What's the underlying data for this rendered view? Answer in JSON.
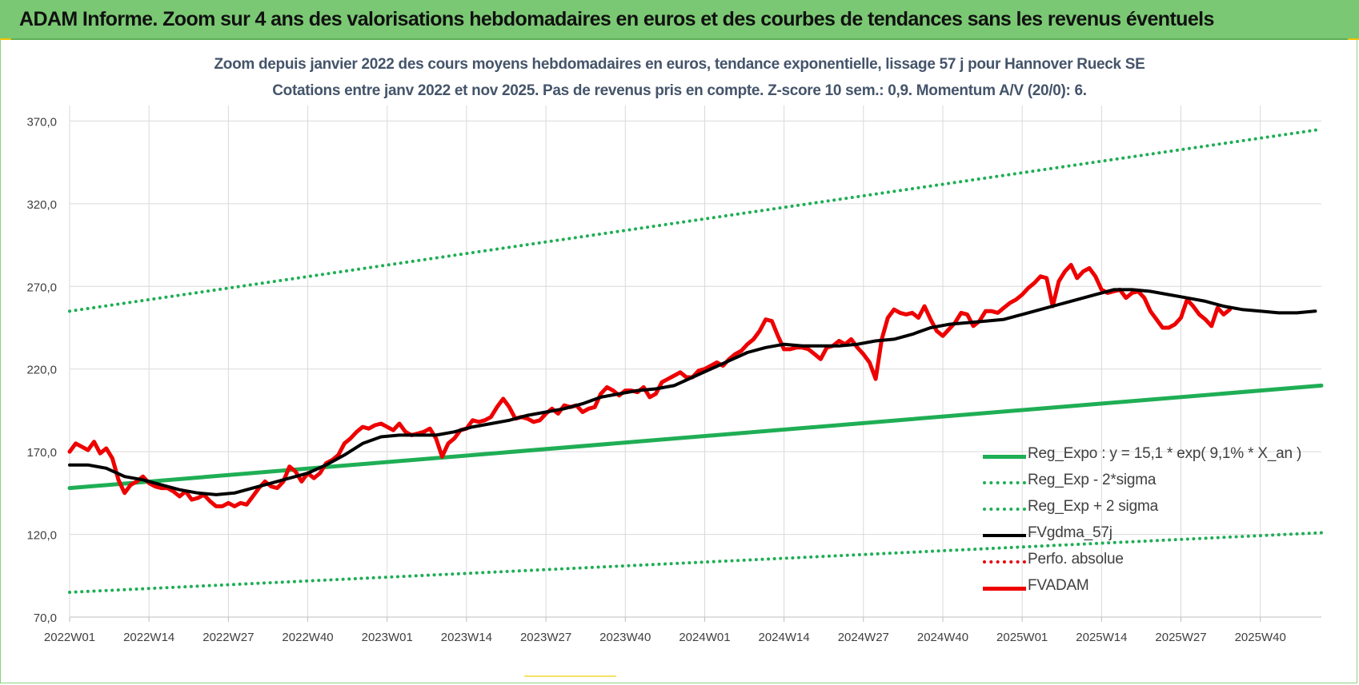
{
  "banner": {
    "title": "ADAM Informe. Zoom sur 4 ans des valorisations hebdomadaires en euros et des courbes de tendances sans les revenus éventuels"
  },
  "chart_data": {
    "type": "line",
    "title": "Zoom depuis janvier 2022 des cours moyens hebdomadaires en euros, tendance exponentielle, lissage 57 j pour Hannover Rueck SE",
    "subtitle": "Cotations entre janv 2022 et nov 2025. Pas de revenus pris en compte. Z-score 10 sem.: 0,9. Momentum A/V (20/0): 6.",
    "xlabel": "",
    "ylabel": "",
    "ylim": [
      70,
      390
    ],
    "yticks": [
      "70,0",
      "120,0",
      "170,0",
      "220,0",
      "270,0",
      "320,0",
      "370,0"
    ],
    "ytick_values": [
      70,
      120,
      170,
      220,
      270,
      320,
      370
    ],
    "xticks": [
      "2022W01",
      "2022W14",
      "2022W27",
      "2022W40",
      "2023W01",
      "2023W14",
      "2023W27",
      "2023W40",
      "2024W01",
      "2024W14",
      "2024W27",
      "2024W40",
      "2025W01",
      "2025W14",
      "2025W27",
      "2025W40"
    ],
    "xtick_weeks": [
      0,
      13,
      26,
      39,
      52,
      65,
      78,
      91,
      104,
      117,
      130,
      143,
      156,
      169,
      182,
      195
    ],
    "x_range_weeks": [
      0,
      205
    ],
    "grid": true,
    "legend_position": "bottom-right",
    "colors": {
      "reg_expo": "#1fae55",
      "bands": "#1fae55",
      "fvgdma": "#000000",
      "perfo": "#e8000b",
      "fvadam": "#ee0000",
      "grid": "#d9d9d9",
      "axis_text": "#404040",
      "subtitle": "#44546a"
    },
    "series": [
      {
        "name": "Reg_Expo : y = 15,1 * exp( 9,1% *  X_an )",
        "key": "reg_expo",
        "style": "solid-thick",
        "points": [
          [
            0,
            148
          ],
          [
            205,
            210
          ]
        ]
      },
      {
        "name": "Reg_Exp - 2*sigma",
        "key": "band_low",
        "style": "dotted",
        "points": [
          [
            0,
            85
          ],
          [
            205,
            121
          ]
        ]
      },
      {
        "name": "Reg_Exp + 2 sigma",
        "key": "band_high",
        "style": "dotted",
        "points": [
          [
            0,
            255
          ],
          [
            205,
            365
          ]
        ]
      },
      {
        "name": "FVgdma_57j",
        "key": "fvgdma",
        "style": "solid",
        "points": [
          [
            0,
            162
          ],
          [
            3,
            162
          ],
          [
            6,
            160
          ],
          [
            9,
            155
          ],
          [
            12,
            153
          ],
          [
            15,
            150
          ],
          [
            18,
            147
          ],
          [
            21,
            145
          ],
          [
            24,
            144
          ],
          [
            27,
            145
          ],
          [
            30,
            148
          ],
          [
            33,
            151
          ],
          [
            36,
            154
          ],
          [
            39,
            157
          ],
          [
            42,
            162
          ],
          [
            45,
            168
          ],
          [
            48,
            175
          ],
          [
            51,
            179
          ],
          [
            54,
            180
          ],
          [
            57,
            180
          ],
          [
            60,
            180
          ],
          [
            63,
            182
          ],
          [
            66,
            185
          ],
          [
            69,
            187
          ],
          [
            72,
            189
          ],
          [
            75,
            192
          ],
          [
            78,
            194
          ],
          [
            81,
            196
          ],
          [
            84,
            199
          ],
          [
            87,
            203
          ],
          [
            90,
            205
          ],
          [
            93,
            207
          ],
          [
            96,
            208
          ],
          [
            99,
            210
          ],
          [
            102,
            215
          ],
          [
            105,
            220
          ],
          [
            108,
            225
          ],
          [
            111,
            230
          ],
          [
            114,
            233
          ],
          [
            117,
            235
          ],
          [
            120,
            234
          ],
          [
            123,
            234
          ],
          [
            126,
            234
          ],
          [
            129,
            235
          ],
          [
            132,
            237
          ],
          [
            135,
            238
          ],
          [
            138,
            241
          ],
          [
            141,
            245
          ],
          [
            144,
            247
          ],
          [
            147,
            248
          ],
          [
            150,
            249
          ],
          [
            153,
            250
          ],
          [
            156,
            253
          ],
          [
            159,
            256
          ],
          [
            162,
            259
          ],
          [
            165,
            262
          ],
          [
            168,
            265
          ],
          [
            171,
            268
          ],
          [
            174,
            268
          ],
          [
            177,
            267
          ],
          [
            180,
            265
          ],
          [
            183,
            263
          ],
          [
            186,
            261
          ],
          [
            189,
            258
          ],
          [
            192,
            256
          ],
          [
            195,
            255
          ],
          [
            198,
            254
          ],
          [
            201,
            254
          ],
          [
            204,
            255
          ]
        ]
      },
      {
        "name": "Perfo. absolue",
        "key": "perfo",
        "style": "dotted",
        "points": []
      },
      {
        "name": "FVADAM",
        "key": "fvadam",
        "style": "solid-thick",
        "points": [
          [
            0,
            170
          ],
          [
            1,
            175
          ],
          [
            2,
            173
          ],
          [
            3,
            171
          ],
          [
            4,
            176
          ],
          [
            5,
            169
          ],
          [
            6,
            172
          ],
          [
            7,
            166
          ],
          [
            8,
            153
          ],
          [
            9,
            145
          ],
          [
            10,
            150
          ],
          [
            11,
            152
          ],
          [
            12,
            155
          ],
          [
            13,
            151
          ],
          [
            14,
            149
          ],
          [
            15,
            148
          ],
          [
            16,
            148
          ],
          [
            17,
            146
          ],
          [
            18,
            143
          ],
          [
            19,
            146
          ],
          [
            20,
            141
          ],
          [
            21,
            142
          ],
          [
            22,
            144
          ],
          [
            23,
            140
          ],
          [
            24,
            137
          ],
          [
            25,
            137
          ],
          [
            26,
            139
          ],
          [
            27,
            137
          ],
          [
            28,
            139
          ],
          [
            29,
            138
          ],
          [
            30,
            143
          ],
          [
            31,
            148
          ],
          [
            32,
            152
          ],
          [
            33,
            149
          ],
          [
            34,
            148
          ],
          [
            35,
            152
          ],
          [
            36,
            161
          ],
          [
            37,
            158
          ],
          [
            38,
            152
          ],
          [
            39,
            157
          ],
          [
            40,
            154
          ],
          [
            41,
            157
          ],
          [
            42,
            163
          ],
          [
            43,
            165
          ],
          [
            44,
            168
          ],
          [
            45,
            175
          ],
          [
            46,
            178
          ],
          [
            47,
            182
          ],
          [
            48,
            185
          ],
          [
            49,
            184
          ],
          [
            50,
            186
          ],
          [
            51,
            187
          ],
          [
            52,
            185
          ],
          [
            53,
            183
          ],
          [
            54,
            187
          ],
          [
            55,
            182
          ],
          [
            56,
            180
          ],
          [
            57,
            181
          ],
          [
            58,
            182
          ],
          [
            59,
            184
          ],
          [
            60,
            178
          ],
          [
            61,
            167
          ],
          [
            62,
            175
          ],
          [
            63,
            178
          ],
          [
            64,
            183
          ],
          [
            65,
            184
          ],
          [
            66,
            189
          ],
          [
            67,
            188
          ],
          [
            68,
            189
          ],
          [
            69,
            191
          ],
          [
            70,
            197
          ],
          [
            71,
            202
          ],
          [
            72,
            197
          ],
          [
            73,
            190
          ],
          [
            74,
            191
          ],
          [
            75,
            190
          ],
          [
            76,
            188
          ],
          [
            77,
            189
          ],
          [
            78,
            193
          ],
          [
            79,
            196
          ],
          [
            80,
            193
          ],
          [
            81,
            198
          ],
          [
            82,
            197
          ],
          [
            83,
            198
          ],
          [
            84,
            194
          ],
          [
            85,
            196
          ],
          [
            86,
            197
          ],
          [
            87,
            205
          ],
          [
            88,
            209
          ],
          [
            89,
            207
          ],
          [
            90,
            204
          ],
          [
            91,
            207
          ],
          [
            92,
            207
          ],
          [
            93,
            206
          ],
          [
            94,
            209
          ],
          [
            95,
            203
          ],
          [
            96,
            205
          ],
          [
            97,
            212
          ],
          [
            98,
            214
          ],
          [
            99,
            216
          ],
          [
            100,
            218
          ],
          [
            101,
            215
          ],
          [
            102,
            215
          ],
          [
            103,
            219
          ],
          [
            104,
            220
          ],
          [
            105,
            222
          ],
          [
            106,
            224
          ],
          [
            107,
            222
          ],
          [
            108,
            226
          ],
          [
            109,
            229
          ],
          [
            110,
            231
          ],
          [
            111,
            235
          ],
          [
            112,
            238
          ],
          [
            113,
            243
          ],
          [
            114,
            250
          ],
          [
            115,
            249
          ],
          [
            116,
            240
          ],
          [
            117,
            232
          ],
          [
            118,
            232
          ],
          [
            119,
            233
          ],
          [
            120,
            233
          ],
          [
            121,
            232
          ],
          [
            122,
            229
          ],
          [
            123,
            226
          ],
          [
            124,
            233
          ],
          [
            125,
            234
          ],
          [
            126,
            237
          ],
          [
            127,
            235
          ],
          [
            128,
            238
          ],
          [
            129,
            233
          ],
          [
            130,
            229
          ],
          [
            131,
            224
          ],
          [
            132,
            214
          ],
          [
            133,
            238
          ],
          [
            134,
            251
          ],
          [
            135,
            256
          ],
          [
            136,
            254
          ],
          [
            137,
            253
          ],
          [
            138,
            254
          ],
          [
            139,
            251
          ],
          [
            140,
            258
          ],
          [
            141,
            250
          ],
          [
            142,
            243
          ],
          [
            143,
            240
          ],
          [
            144,
            244
          ],
          [
            145,
            248
          ],
          [
            146,
            254
          ],
          [
            147,
            253
          ],
          [
            148,
            246
          ],
          [
            149,
            249
          ],
          [
            150,
            255
          ],
          [
            151,
            255
          ],
          [
            152,
            254
          ],
          [
            153,
            257
          ],
          [
            154,
            260
          ],
          [
            155,
            262
          ],
          [
            156,
            265
          ],
          [
            157,
            269
          ],
          [
            158,
            272
          ],
          [
            159,
            276
          ],
          [
            160,
            275
          ],
          [
            161,
            258
          ],
          [
            162,
            273
          ],
          [
            163,
            279
          ],
          [
            164,
            283
          ],
          [
            165,
            275
          ],
          [
            166,
            279
          ],
          [
            167,
            281
          ],
          [
            168,
            276
          ],
          [
            169,
            268
          ],
          [
            170,
            266
          ],
          [
            171,
            267
          ],
          [
            172,
            268
          ],
          [
            173,
            263
          ],
          [
            174,
            266
          ],
          [
            175,
            267
          ],
          [
            176,
            263
          ],
          [
            177,
            255
          ],
          [
            178,
            250
          ],
          [
            179,
            245
          ],
          [
            180,
            245
          ],
          [
            181,
            247
          ],
          [
            182,
            251
          ],
          [
            183,
            262
          ],
          [
            184,
            258
          ],
          [
            185,
            253
          ],
          [
            186,
            250
          ],
          [
            187,
            246
          ],
          [
            188,
            257
          ],
          [
            189,
            253
          ],
          [
            190,
            256
          ]
        ]
      }
    ]
  }
}
